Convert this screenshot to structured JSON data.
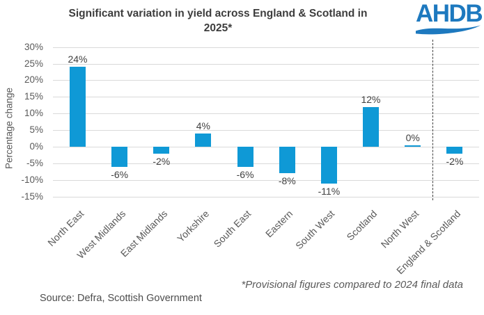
{
  "header": {
    "title_line1": "Significant variation in yield across England & Scotland in",
    "title_line2": "2025*",
    "logo_text": "AHDB"
  },
  "chart_data": {
    "type": "bar",
    "title": "Significant variation in yield across England & Scotland in 2025*",
    "xlabel": "",
    "ylabel": "Percentage change",
    "categories": [
      "North East",
      "West Midlands",
      "East Midlands",
      "Yorkshire",
      "South East",
      "Eastern",
      "South West",
      "Scotland",
      "North West",
      "England & Scotland"
    ],
    "values": [
      24,
      -6,
      -2,
      4,
      -6,
      -8,
      -11,
      12,
      0,
      -2
    ],
    "data_labels": [
      "24%",
      "-6%",
      "-2%",
      "4%",
      "-6%",
      "-8%",
      "-11%",
      "12%",
      "0%",
      "-2%"
    ],
    "ylim": [
      -15,
      30
    ],
    "ytick_step": 5,
    "ytick_suffix": "%",
    "grid": "horizontal",
    "legend": "none",
    "separator": {
      "style": "dashed",
      "between": [
        "North West",
        "England & Scotland"
      ]
    },
    "bar_color": "#0f99d6"
  },
  "footer": {
    "footnote": "*Provisional figures compared to 2024 final data",
    "source": "Source: Defra, Scottish Government"
  },
  "colors": {
    "bar": "#0f99d6",
    "logo_blue": "#1d79bf",
    "title_text": "#3d3d3d",
    "axis_text": "#595959",
    "gridline": "#d9d9d9",
    "separator_line": "#3f3f3f"
  }
}
